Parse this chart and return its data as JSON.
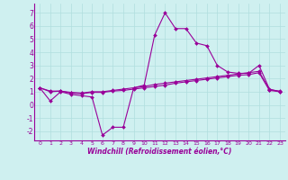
{
  "xlabel": "Windchill (Refroidissement éolien,°C)",
  "background_color": "#cff0f0",
  "grid_color": "#b0dede",
  "line_color": "#990099",
  "xlim": [
    -0.5,
    23.5
  ],
  "ylim": [
    -2.7,
    7.7
  ],
  "xticks": [
    0,
    1,
    2,
    3,
    4,
    5,
    6,
    7,
    8,
    9,
    10,
    11,
    12,
    13,
    14,
    15,
    16,
    17,
    18,
    19,
    20,
    21,
    22,
    23
  ],
  "yticks": [
    -2,
    -1,
    0,
    1,
    2,
    3,
    4,
    5,
    6,
    7
  ],
  "x_values": [
    0,
    1,
    2,
    3,
    4,
    5,
    6,
    7,
    8,
    9,
    10,
    11,
    12,
    13,
    14,
    15,
    16,
    17,
    18,
    19,
    20,
    21,
    22,
    23
  ],
  "line1_y": [
    1.3,
    0.3,
    1.0,
    0.8,
    0.7,
    0.6,
    -2.3,
    -1.7,
    -1.7,
    1.3,
    1.5,
    5.3,
    7.0,
    5.8,
    5.8,
    4.7,
    4.5,
    3.0,
    2.5,
    2.4,
    2.4,
    3.0,
    1.2,
    1.0
  ],
  "line2_y": [
    1.3,
    1.0,
    1.05,
    0.9,
    0.85,
    0.95,
    0.95,
    1.05,
    1.1,
    1.2,
    1.3,
    1.4,
    1.5,
    1.65,
    1.75,
    1.85,
    1.95,
    2.05,
    2.15,
    2.25,
    2.3,
    2.45,
    1.1,
    1.0
  ],
  "line3_y": [
    1.3,
    1.05,
    1.05,
    0.95,
    0.9,
    1.0,
    1.0,
    1.1,
    1.2,
    1.3,
    1.4,
    1.55,
    1.65,
    1.75,
    1.85,
    1.95,
    2.05,
    2.15,
    2.25,
    2.35,
    2.45,
    2.55,
    1.15,
    1.05
  ]
}
